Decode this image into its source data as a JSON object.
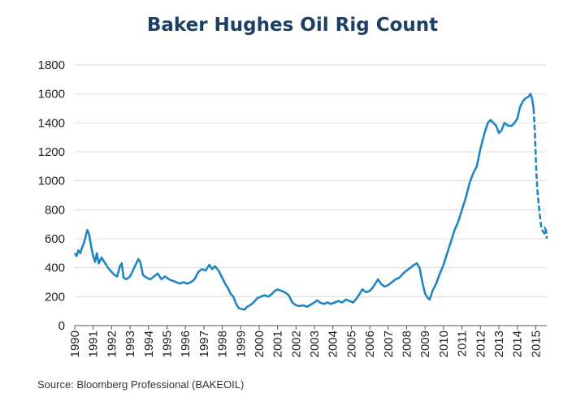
{
  "title": "Baker Hughes Oil Rig Count",
  "source": "Source: Bloomberg Professional (BAKEOIL)",
  "colors": {
    "line": "#1f86c4",
    "grid": "#dddddd",
    "axis": "#555555",
    "title": "#1b4068"
  },
  "chart_data": {
    "type": "line",
    "title": "Baker Hughes Oil Rig Count",
    "xlabel": "",
    "ylabel": "",
    "ylim": [
      0,
      1800
    ],
    "xlim": [
      1990,
      2015.6
    ],
    "y_ticks": [
      0,
      200,
      400,
      600,
      800,
      1000,
      1200,
      1400,
      1600,
      1800
    ],
    "x_tick_labels": [
      "1990",
      "1991",
      "1992",
      "1993",
      "1994",
      "1995",
      "1996",
      "1997",
      "1998",
      "1999",
      "2000",
      "2001",
      "2002",
      "2003",
      "2004",
      "2005",
      "2006",
      "2007",
      "2008",
      "2009",
      "2010",
      "2011",
      "2012",
      "2013",
      "2014",
      "2015"
    ],
    "grid": "horizontal",
    "series": [
      {
        "name": "",
        "points": [
          [
            1990.0,
            500
          ],
          [
            1990.1,
            480
          ],
          [
            1990.2,
            520
          ],
          [
            1990.3,
            500
          ],
          [
            1990.4,
            540
          ],
          [
            1990.5,
            570
          ],
          [
            1990.6,
            620
          ],
          [
            1990.68,
            660
          ],
          [
            1990.78,
            630
          ],
          [
            1990.9,
            540
          ],
          [
            1991.0,
            480
          ],
          [
            1991.1,
            440
          ],
          [
            1991.2,
            500
          ],
          [
            1991.3,
            430
          ],
          [
            1991.45,
            470
          ],
          [
            1991.6,
            440
          ],
          [
            1991.8,
            400
          ],
          [
            1992.0,
            370
          ],
          [
            1992.15,
            350
          ],
          [
            1992.3,
            340
          ],
          [
            1992.45,
            410
          ],
          [
            1992.55,
            430
          ],
          [
            1992.65,
            330
          ],
          [
            1992.8,
            320
          ],
          [
            1993.0,
            340
          ],
          [
            1993.15,
            380
          ],
          [
            1993.3,
            420
          ],
          [
            1993.45,
            460
          ],
          [
            1993.55,
            440
          ],
          [
            1993.7,
            350
          ],
          [
            1993.9,
            330
          ],
          [
            1994.1,
            320
          ],
          [
            1994.3,
            340
          ],
          [
            1994.5,
            360
          ],
          [
            1994.7,
            320
          ],
          [
            1994.9,
            340
          ],
          [
            1995.1,
            320
          ],
          [
            1995.3,
            310
          ],
          [
            1995.5,
            300
          ],
          [
            1995.7,
            290
          ],
          [
            1995.9,
            300
          ],
          [
            1996.1,
            290
          ],
          [
            1996.3,
            300
          ],
          [
            1996.5,
            320
          ],
          [
            1996.7,
            370
          ],
          [
            1996.9,
            390
          ],
          [
            1997.1,
            380
          ],
          [
            1997.3,
            420
          ],
          [
            1997.45,
            390
          ],
          [
            1997.6,
            410
          ],
          [
            1997.8,
            380
          ],
          [
            1998.0,
            330
          ],
          [
            1998.15,
            290
          ],
          [
            1998.3,
            260
          ],
          [
            1998.45,
            220
          ],
          [
            1998.6,
            200
          ],
          [
            1998.75,
            150
          ],
          [
            1998.9,
            120
          ],
          [
            1999.05,
            115
          ],
          [
            1999.2,
            110
          ],
          [
            1999.35,
            130
          ],
          [
            1999.5,
            140
          ],
          [
            1999.7,
            160
          ],
          [
            1999.9,
            190
          ],
          [
            2000.1,
            200
          ],
          [
            2000.3,
            210
          ],
          [
            2000.5,
            200
          ],
          [
            2000.7,
            220
          ],
          [
            2000.85,
            240
          ],
          [
            2001.0,
            250
          ],
          [
            2001.2,
            240
          ],
          [
            2001.4,
            230
          ],
          [
            2001.6,
            210
          ],
          [
            2001.8,
            160
          ],
          [
            2002.0,
            140
          ],
          [
            2002.2,
            135
          ],
          [
            2002.4,
            140
          ],
          [
            2002.6,
            130
          ],
          [
            2002.8,
            145
          ],
          [
            2003.0,
            160
          ],
          [
            2003.15,
            175
          ],
          [
            2003.3,
            160
          ],
          [
            2003.5,
            150
          ],
          [
            2003.7,
            160
          ],
          [
            2003.9,
            150
          ],
          [
            2004.1,
            160
          ],
          [
            2004.3,
            170
          ],
          [
            2004.5,
            160
          ],
          [
            2004.7,
            180
          ],
          [
            2004.9,
            170
          ],
          [
            2005.1,
            160
          ],
          [
            2005.3,
            190
          ],
          [
            2005.45,
            220
          ],
          [
            2005.6,
            250
          ],
          [
            2005.8,
            230
          ],
          [
            2006.0,
            240
          ],
          [
            2006.15,
            260
          ],
          [
            2006.3,
            290
          ],
          [
            2006.45,
            320
          ],
          [
            2006.6,
            290
          ],
          [
            2006.8,
            270
          ],
          [
            2007.0,
            280
          ],
          [
            2007.2,
            300
          ],
          [
            2007.4,
            320
          ],
          [
            2007.6,
            330
          ],
          [
            2007.8,
            360
          ],
          [
            2008.0,
            380
          ],
          [
            2008.2,
            400
          ],
          [
            2008.4,
            420
          ],
          [
            2008.55,
            430
          ],
          [
            2008.7,
            400
          ],
          [
            2008.85,
            300
          ],
          [
            2009.0,
            220
          ],
          [
            2009.15,
            190
          ],
          [
            2009.25,
            180
          ],
          [
            2009.4,
            240
          ],
          [
            2009.6,
            290
          ],
          [
            2009.8,
            360
          ],
          [
            2010.0,
            420
          ],
          [
            2010.2,
            500
          ],
          [
            2010.4,
            580
          ],
          [
            2010.6,
            660
          ],
          [
            2010.8,
            720
          ],
          [
            2011.0,
            800
          ],
          [
            2011.2,
            880
          ],
          [
            2011.4,
            980
          ],
          [
            2011.6,
            1050
          ],
          [
            2011.8,
            1100
          ],
          [
            2012.0,
            1220
          ],
          [
            2012.2,
            1320
          ],
          [
            2012.4,
            1400
          ],
          [
            2012.55,
            1420
          ],
          [
            2012.7,
            1400
          ],
          [
            2012.85,
            1380
          ],
          [
            2013.0,
            1330
          ],
          [
            2013.15,
            1350
          ],
          [
            2013.3,
            1400
          ],
          [
            2013.5,
            1380
          ],
          [
            2013.7,
            1380
          ],
          [
            2013.85,
            1400
          ],
          [
            2014.0,
            1430
          ],
          [
            2014.15,
            1510
          ],
          [
            2014.3,
            1550
          ],
          [
            2014.45,
            1570
          ],
          [
            2014.6,
            1580
          ],
          [
            2014.72,
            1600
          ],
          [
            2014.8,
            1570
          ],
          [
            2014.88,
            1500
          ],
          [
            2014.95,
            1350
          ],
          [
            2015.02,
            1100
          ],
          [
            2015.08,
            950
          ],
          [
            2015.15,
            850
          ],
          [
            2015.22,
            760
          ],
          [
            2015.3,
            680
          ],
          [
            2015.38,
            650
          ],
          [
            2015.45,
            640
          ],
          [
            2015.5,
            670
          ],
          [
            2015.55,
            660
          ],
          [
            2015.6,
            600
          ]
        ]
      }
    ],
    "dashed_from_x": 2014.9
  }
}
